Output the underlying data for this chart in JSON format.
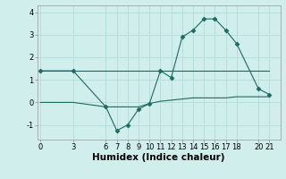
{
  "xlabel": "Humidex (Indice chaleur)",
  "x_main": [
    0,
    3,
    6,
    7,
    8,
    9,
    10,
    11,
    12,
    13,
    14,
    15,
    16,
    17,
    18,
    20,
    21
  ],
  "y_main": [
    1.4,
    1.4,
    -0.2,
    -1.25,
    -1.0,
    -0.3,
    -0.05,
    1.4,
    1.1,
    2.9,
    3.2,
    3.7,
    3.7,
    3.2,
    2.6,
    0.6,
    0.35
  ],
  "x_flat": [
    0,
    3,
    6,
    7,
    8,
    9,
    10,
    11,
    12,
    13,
    14,
    15,
    16,
    17,
    18,
    20,
    21
  ],
  "y_flat": [
    1.4,
    1.4,
    1.4,
    1.4,
    1.4,
    1.4,
    1.4,
    1.4,
    1.4,
    1.4,
    1.4,
    1.4,
    1.4,
    1.4,
    1.4,
    1.4,
    1.4
  ],
  "x_flat2": [
    0,
    3,
    6,
    7,
    8,
    9,
    10,
    11,
    12,
    13,
    14,
    15,
    16,
    17,
    18,
    20,
    21
  ],
  "y_flat2": [
    0.0,
    0.0,
    -0.2,
    -0.2,
    -0.2,
    -0.2,
    -0.05,
    0.05,
    0.1,
    0.15,
    0.2,
    0.2,
    0.2,
    0.2,
    0.25,
    0.25,
    0.25
  ],
  "line_color": "#1a6b62",
  "marker": "D",
  "marker_size": 2.5,
  "bg_color": "#d0eeec",
  "grid_color": "#b8deda",
  "ylim": [
    -1.65,
    4.3
  ],
  "xlim": [
    -0.3,
    22.0
  ],
  "yticks": [
    -1,
    0,
    1,
    2,
    3,
    4
  ],
  "xticks": [
    0,
    3,
    6,
    7,
    8,
    9,
    10,
    11,
    12,
    13,
    14,
    15,
    16,
    17,
    18,
    20,
    21
  ],
  "tick_fontsize": 6,
  "xlabel_fontsize": 7.5
}
